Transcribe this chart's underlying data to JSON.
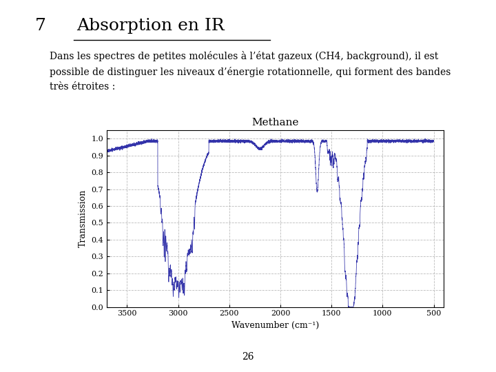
{
  "slide_number": "7",
  "title": "Absorption en IR",
  "body_text": "Dans les spectres de petites molécules à l’état gazeux (CH4, background), il est\npossible de distinguer les niveaux d’énergie rotationnelle, qui forment des bandes\ntrès étroites :",
  "chart_title": "Methane",
  "xlabel": "Wavenumber (cm⁻¹)",
  "ylabel": "Transmission",
  "xlim": [
    3700,
    400
  ],
  "ylim": [
    0.0,
    1.05
  ],
  "yticks": [
    0.0,
    0.1,
    0.2,
    0.3,
    0.4,
    0.5,
    0.6,
    0.7,
    0.8,
    0.9,
    1.0
  ],
  "xticks": [
    3500,
    3000,
    2500,
    2000,
    1500,
    1000,
    500
  ],
  "page_number": "26",
  "bg_color": "#ffffff",
  "text_color": "#000000",
  "line_color": "#3333aa",
  "grid_color": "#aaaaaa",
  "chart_bg": "#ffffff"
}
